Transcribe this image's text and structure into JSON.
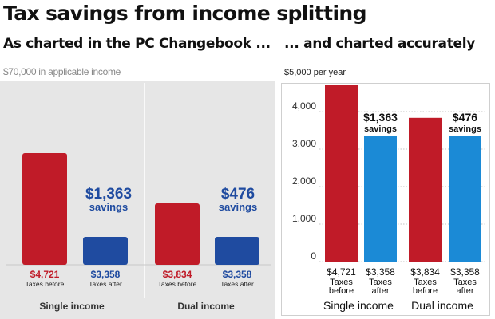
{
  "header": {
    "title": "Tax savings from income splitting",
    "subtitle_left": "As charted in the PC Changebook ...",
    "subtitle_right": "... and charted accurately"
  },
  "colors": {
    "red": "#c01b28",
    "blue": "#1f4ba0",
    "light_blue": "#1b8ad6",
    "panel_bg": "#e6e6e6"
  },
  "chart_data": [
    {
      "type": "bar",
      "note": "$70,000 in applicable income",
      "groups": [
        "Single income",
        "Dual income"
      ],
      "bars": [
        {
          "group": "Single income",
          "value": 4721,
          "value_label": "$4,721",
          "label": "Taxes before",
          "color": "red",
          "display_height": 1.0
        },
        {
          "group": "Single income",
          "value": 3358,
          "value_label": "$3,358",
          "label": "Taxes after",
          "color": "blue",
          "display_height": 0.25
        },
        {
          "group": "Dual income",
          "value": 3834,
          "value_label": "$3,834",
          "label": "Taxes before",
          "color": "red",
          "display_height": 0.55
        },
        {
          "group": "Dual income",
          "value": 3358,
          "value_label": "$3,358",
          "label": "Taxes after",
          "color": "blue",
          "display_height": 0.25
        }
      ],
      "savings": [
        {
          "group": "Single income",
          "amount": "$1,363",
          "label": "savings"
        },
        {
          "group": "Dual income",
          "amount": "$476",
          "label": "savings"
        }
      ]
    },
    {
      "type": "bar",
      "yaxis_label": "$5,000 per year",
      "ylim": [
        0,
        5000
      ],
      "yticks": [
        0,
        1000,
        2000,
        3000,
        4000
      ],
      "ytick_labels": [
        "0",
        "1,000",
        "2,000",
        "3,000",
        "4,000"
      ],
      "grid": true,
      "groups": [
        "Single income",
        "Dual income"
      ],
      "bars": [
        {
          "group": "Single income",
          "value": 4721,
          "value_label": "$4,721",
          "label_line1": "Taxes",
          "label_line2": "before",
          "color": "red"
        },
        {
          "group": "Single income",
          "value": 3358,
          "value_label": "$3,358",
          "label_line1": "Taxes",
          "label_line2": "after",
          "color": "light_blue"
        },
        {
          "group": "Dual income",
          "value": 3834,
          "value_label": "$3,834",
          "label_line1": "Taxes",
          "label_line2": "before",
          "color": "red"
        },
        {
          "group": "Dual income",
          "value": 3358,
          "value_label": "$3,358",
          "label_line1": "Taxes",
          "label_line2": "after",
          "color": "light_blue"
        }
      ],
      "savings": [
        {
          "group": "Single income",
          "amount": "$1,363",
          "label": "savings"
        },
        {
          "group": "Dual income",
          "amount": "$476",
          "label": "savings"
        }
      ]
    }
  ]
}
